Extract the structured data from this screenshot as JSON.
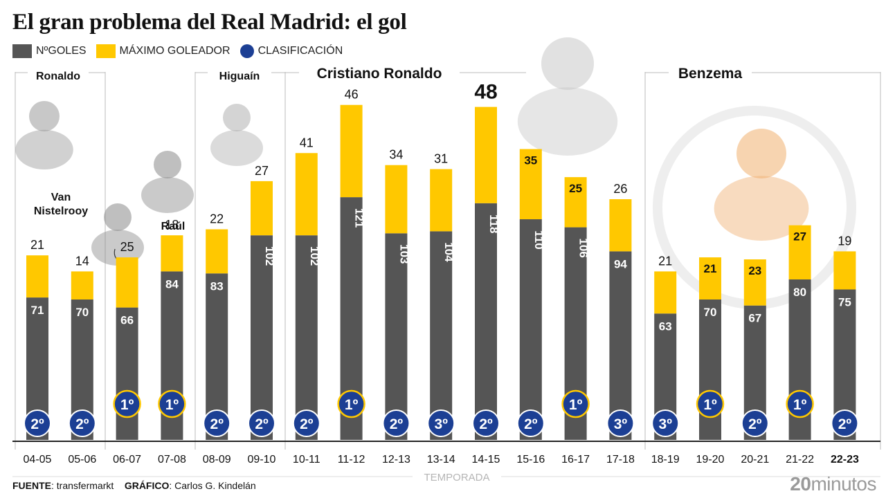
{
  "title": "El gran problema del Real Madrid: el gol",
  "legend": [
    {
      "label": "NºGOLES",
      "color": "#555555",
      "shape": "square"
    },
    {
      "label": "MÁXIMO GOLEADOR",
      "color": "#FFC800",
      "shape": "square"
    },
    {
      "label": "CLASIFICACIÓN",
      "color": "#1C3F94",
      "shape": "circle"
    }
  ],
  "eras": [
    {
      "name": "Ronaldo",
      "from": 0,
      "to": 0
    },
    {
      "name": "Higuaín",
      "from": 4,
      "to": 5
    },
    {
      "name": "Cristiano Ronaldo",
      "from": 6,
      "to": 13
    },
    {
      "name": "Benzema",
      "from": 14,
      "to": 18
    }
  ],
  "player_labels": [
    {
      "name": "Van Nistelrooy",
      "season_index": 2
    },
    {
      "name": "Raúl",
      "season_index": 3
    }
  ],
  "chart_data": {
    "type": "bar",
    "categories": [
      "04-05",
      "05-06",
      "06-07",
      "07-08",
      "08-09",
      "09-10",
      "10-11",
      "11-12",
      "12-13",
      "13-14",
      "14-15",
      "15-16",
      "16-17",
      "17-18",
      "18-19",
      "19-20",
      "20-21",
      "21-22",
      "22-23"
    ],
    "xlabel": "TEMPORADA",
    "series": [
      {
        "name": "NºGOLES",
        "color": "#555555",
        "values": [
          71,
          70,
          66,
          84,
          83,
          102,
          102,
          121,
          103,
          104,
          118,
          110,
          106,
          94,
          63,
          70,
          67,
          80,
          75
        ]
      },
      {
        "name": "MÁXIMO GOLEADOR",
        "color": "#FFC800",
        "values": [
          21,
          14,
          25,
          18,
          22,
          27,
          41,
          46,
          34,
          31,
          48,
          35,
          25,
          26,
          21,
          21,
          23,
          27,
          19
        ]
      }
    ],
    "clasificacion": [
      "2º",
      "2º",
      "1º",
      "1º",
      "2º",
      "2º",
      "2º",
      "1º",
      "2º",
      "3º",
      "2º",
      "2º",
      "1º",
      "3º",
      "3º",
      "1º",
      "2º",
      "1º",
      "2º"
    ],
    "highlight_max_index": 10,
    "highlight_last_category": true
  },
  "footer": {
    "source_label": "FUENTE",
    "source_value": ": transfermarkt",
    "graphic_label": "GRÁFICO",
    "graphic_value": ": Carlos G. Kindelán"
  },
  "brand": {
    "number": "20",
    "text": "minutos"
  }
}
